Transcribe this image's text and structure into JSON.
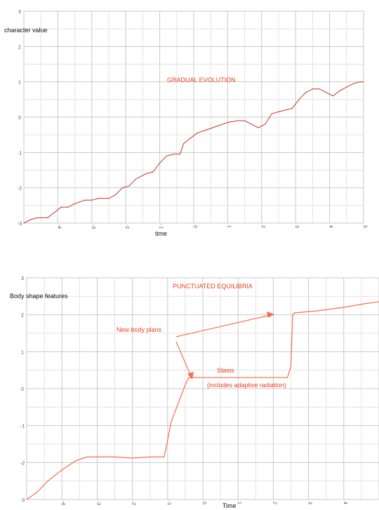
{
  "chart_data": [
    {
      "type": "line",
      "title": "GRADUAL EVOLUTION",
      "xlabel": "time",
      "ylabel": "character value",
      "xlim": [
        -5,
        5
      ],
      "ylim": [
        -3,
        3
      ],
      "x_ticks": [
        "-4",
        "-3",
        "-2",
        "-1",
        "0",
        "1",
        "2",
        "3",
        "4",
        "5"
      ],
      "y_ticks": [
        "3",
        "2",
        "1",
        "0",
        "-1",
        "-2",
        "-3"
      ],
      "grid": true,
      "line_color": "#c0392b",
      "series": [
        {
          "x": [
            -5.0,
            -4.8,
            -4.6,
            -4.3,
            -4.1,
            -3.9,
            -3.7,
            -3.5,
            -3.2,
            -3.0,
            -2.8,
            -2.5,
            -2.3,
            -2.1,
            -1.9,
            -1.7,
            -1.4,
            -1.2,
            -1.0,
            -0.8,
            -0.6,
            -0.4,
            -0.3,
            -0.1,
            0.1,
            0.4,
            0.7,
            1.0,
            1.3,
            1.5,
            1.7,
            1.9,
            2.1,
            2.3,
            2.5,
            2.7,
            2.9,
            3.1,
            3.3,
            3.5,
            3.7,
            3.9,
            4.1,
            4.3,
            4.5,
            4.7,
            4.9,
            5.0
          ],
          "y": [
            -3.0,
            -2.9,
            -2.85,
            -2.85,
            -2.7,
            -2.55,
            -2.55,
            -2.45,
            -2.35,
            -2.35,
            -2.3,
            -2.3,
            -2.2,
            -2.0,
            -1.95,
            -1.75,
            -1.6,
            -1.55,
            -1.3,
            -1.1,
            -1.05,
            -1.05,
            -0.75,
            -0.6,
            -0.45,
            -0.35,
            -0.25,
            -0.15,
            -0.1,
            -0.1,
            -0.2,
            -0.3,
            -0.2,
            0.1,
            0.15,
            0.2,
            0.25,
            0.5,
            0.7,
            0.8,
            0.8,
            0.7,
            0.6,
            0.75,
            0.85,
            0.95,
            1.0,
            1.0
          ]
        }
      ]
    },
    {
      "type": "line",
      "title": "PUNCTUATED EQUILIBRIA",
      "xlabel": "Time",
      "ylabel": "Body shape features",
      "xlim": [
        -5,
        5
      ],
      "ylim": [
        -3,
        3
      ],
      "x_ticks": [
        "-4",
        "-3",
        "-2",
        "-1",
        "0",
        "1",
        "2",
        "3",
        "4",
        "5"
      ],
      "y_ticks": [
        "3",
        "2",
        "1",
        "0",
        "-1",
        "-2",
        "-3"
      ],
      "grid": true,
      "line_color": "#f07050",
      "series": [
        {
          "x": [
            -5.0,
            -4.7,
            -4.4,
            -4.0,
            -3.6,
            -3.3,
            -3.0,
            -2.5,
            -2.0,
            -1.5,
            -1.1,
            -1.0,
            -0.9,
            -0.7,
            -0.5,
            -0.4,
            -0.2,
            0.5,
            1.5,
            2.4,
            2.5,
            2.55,
            2.6,
            3.2,
            4.0,
            4.6,
            5.0
          ],
          "y": [
            -3.0,
            -2.8,
            -2.5,
            -2.2,
            -1.95,
            -1.85,
            -1.85,
            -1.85,
            -1.88,
            -1.85,
            -1.85,
            -1.4,
            -0.9,
            -0.4,
            0.1,
            0.3,
            0.3,
            0.3,
            0.3,
            0.3,
            0.6,
            2.0,
            2.05,
            2.1,
            2.2,
            2.3,
            2.35
          ]
        }
      ],
      "annotations": [
        "New body plans",
        "Stasis",
        "(includes adaptive radiation)"
      ]
    }
  ]
}
